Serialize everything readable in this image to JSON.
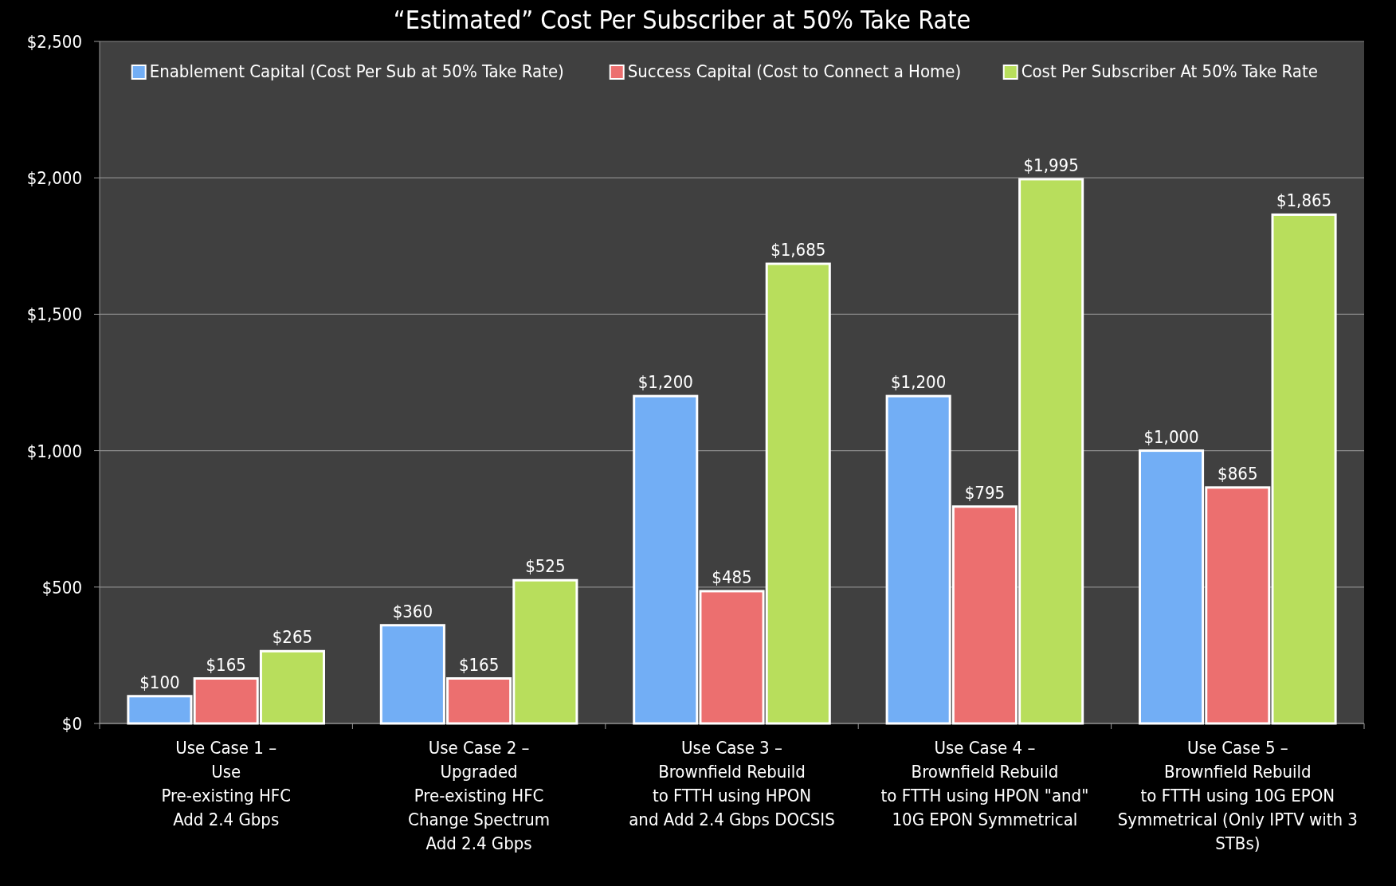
{
  "chart_data": {
    "type": "bar",
    "title": "“Estimated” Cost Per Subscriber at 50% Take Rate",
    "categories": [
      "Use Case 1 –\nUse\nPre-existing HFC\nAdd 2.4 Gbps",
      "Use Case 2 –\nUpgraded\nPre-existing HFC\nChange Spectrum\nAdd 2.4 Gbps",
      "Use Case 3 –\nBrownfield Rebuild\nto FTTH using HPON\nand Add 2.4 Gbps DOCSIS",
      "Use Case 4 –\nBrownfield Rebuild\nto FTTH using HPON \"and\"\n10G EPON Symmetrical",
      "Use Case 5 –\nBrownfield Rebuild\nto FTTH using 10G EPON\nSymmetrical (Only IPTV with 3\nSTBs)"
    ],
    "series": [
      {
        "name": "Enablement Capital (Cost Per Sub at 50% Take Rate)",
        "color": "#72aef5",
        "values": [
          100,
          360,
          1200,
          1200,
          1000
        ],
        "value_labels": [
          "$100",
          "$360",
          "$1,200",
          "$1,200",
          "$1,000"
        ]
      },
      {
        "name": "Success Capital (Cost to Connect a Home)",
        "color": "#ec6f6f",
        "values": [
          165,
          165,
          485,
          795,
          865
        ],
        "value_labels": [
          "$165",
          "$165",
          "$485",
          "$795",
          "$865"
        ]
      },
      {
        "name": "Cost Per Subscriber At 50% Take Rate",
        "color": "#b8de5c",
        "values": [
          265,
          525,
          1685,
          1995,
          1865
        ],
        "value_labels": [
          "$265",
          "$525",
          "$1,685",
          "$1,995",
          "$1,865"
        ]
      }
    ],
    "ylim": [
      0,
      2500
    ],
    "yticks": [
      {
        "value": 0,
        "label": "$0"
      },
      {
        "value": 500,
        "label": "$500"
      },
      {
        "value": 1000,
        "label": "$1,000"
      },
      {
        "value": 1500,
        "label": "$1,500"
      },
      {
        "value": 2000,
        "label": "$2,000"
      },
      {
        "value": 2500,
        "label": "$2,500"
      }
    ],
    "grid": "y",
    "legend": "top"
  }
}
